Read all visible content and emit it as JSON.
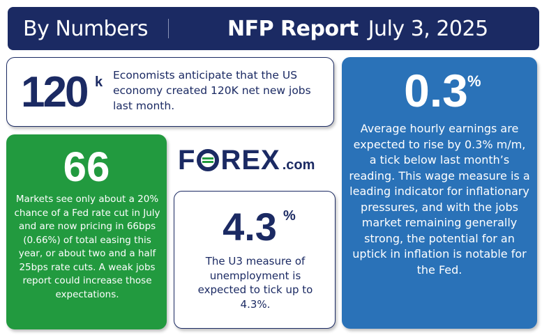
{
  "header": {
    "section": "By Numbers",
    "title": "NFP Report",
    "date": "July 3, 2025",
    "background_color": "#1b2a63"
  },
  "stats": {
    "jobs": {
      "value": "120",
      "suffix": "k",
      "text": "Economists anticipate that the US economy created 120K net new jobs last month."
    },
    "rate_cut": {
      "value": "66",
      "text": "Markets see only about a 20% chance of a Fed rate cut in July and are now pricing in 66bps (0.66%) of total easing this year, or about two and a half 25bps rate cuts. A weak jobs report could increase those expectations.",
      "color": "#229a3f"
    },
    "unemployment": {
      "value": "4.3",
      "suffix": "%",
      "text": "The U3 measure of unemployment is expected to tick up to 4.3%."
    },
    "earnings": {
      "value": "0.3",
      "suffix": "%",
      "text": "Average hourly earnings are expected to rise by 0.3% m/m, a tick below last month’s reading. This wage measure is a leading indicator for inflationary pressures, and with the jobs market remaining generally strong, the potential for an uptick in inflation is notable for the Fed.",
      "color": "#2a72b8"
    }
  },
  "logo": {
    "word": "FOREX",
    "domain": ".com",
    "color": "#1b2a63"
  }
}
